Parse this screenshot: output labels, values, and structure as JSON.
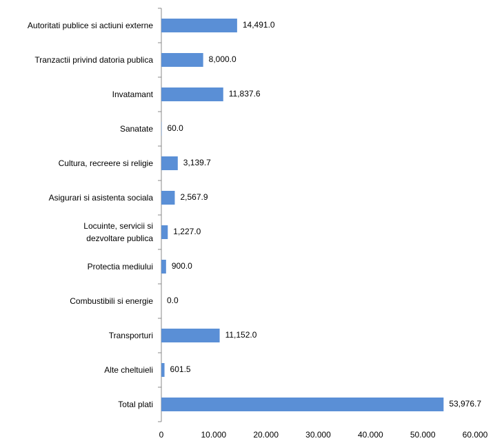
{
  "chart_data": {
    "type": "barh",
    "categories": [
      "Autoritati publice si actiuni externe",
      "Tranzactii privind datoria publica",
      "Invatamant",
      "Sanatate",
      "Cultura, recreere si religie",
      "Asigurari si asistenta sociala",
      "Locuinte, servicii si\ndezvoltare publica",
      "Protectia mediului",
      "Combustibili si energie",
      "Transporturi",
      "Alte cheltuieli",
      "Total plati"
    ],
    "values": [
      14491.0,
      8000.0,
      11837.6,
      60.0,
      3139.7,
      2567.9,
      1227.0,
      900.0,
      0.0,
      11152.0,
      601.5,
      53976.7
    ],
    "value_labels": [
      "14,491.0",
      "8,000.0",
      "11,837.6",
      "60.0",
      "3,139.7",
      "2,567.9",
      "1,227.0",
      "900.0",
      "0.0",
      "11,152.0",
      "601.5",
      "53,976.7"
    ],
    "color": "#5a8fd6",
    "xlim": [
      0,
      60000
    ],
    "xticks": [
      0,
      {
        "value": 10000,
        "label": "10.000"
      },
      {
        "value": 20000,
        "label": "20.000"
      },
      {
        "value": 30000,
        "label": "30.000"
      },
      {
        "value": 40000,
        "label": "40.000"
      },
      {
        "value": 50000,
        "label": "50.000"
      },
      {
        "value": 60000,
        "label": "60.000"
      }
    ],
    "grid": false
  }
}
